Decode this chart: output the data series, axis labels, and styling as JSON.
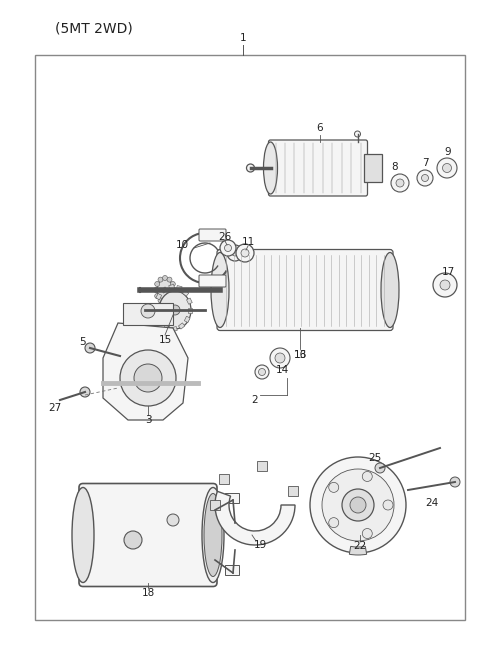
{
  "title": "(5MT 2WD)",
  "bg_color": "#ffffff",
  "border_color": "#888888",
  "line_color": "#555555",
  "fig_width": 4.8,
  "fig_height": 6.51,
  "dpi": 100,
  "title_fontsize": 10,
  "label_fontsize": 7.5,
  "part_fill": "#f5f5f5",
  "part_edge": "#555555",
  "lw_main": 0.9,
  "lw_thin": 0.5,
  "lw_leader": 0.6
}
